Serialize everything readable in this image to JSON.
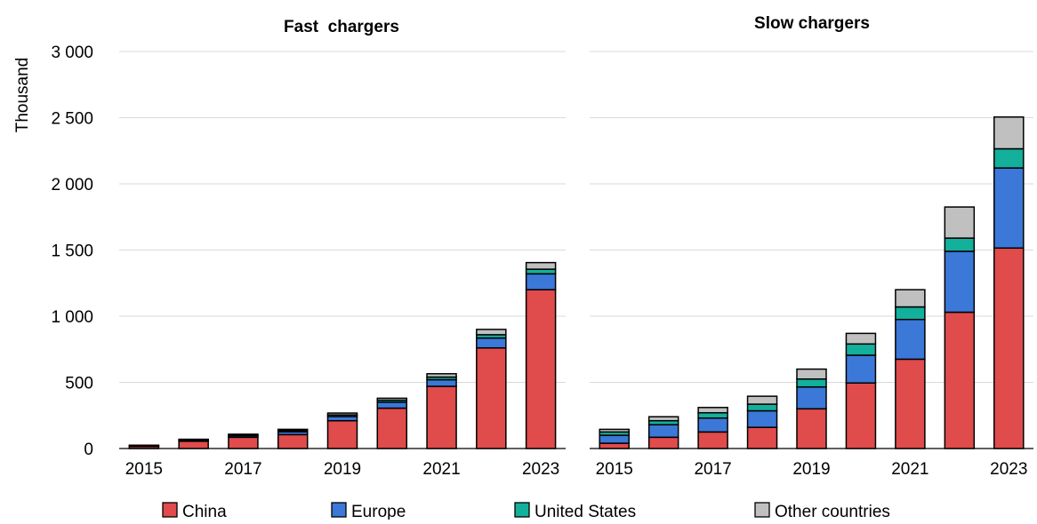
{
  "chart_data": [
    {
      "type": "bar",
      "stacked": true,
      "title": "Fast  chargers",
      "ylabel": "Thousand",
      "ylim": [
        0,
        3000
      ],
      "yticks": [
        0,
        500,
        1000,
        1500,
        2000,
        2500,
        3000
      ],
      "ytick_labels": [
        "0",
        "500",
        "1 000",
        "1 500",
        "2 000",
        "2 500",
        "3 000"
      ],
      "categories": [
        "2015",
        "2016",
        "2017",
        "2018",
        "2019",
        "2020",
        "2021",
        "2022",
        "2023"
      ],
      "xtick_labels": [
        "2015",
        "",
        "2017",
        "",
        "2019",
        "",
        "2021",
        "",
        "2023"
      ],
      "grid": "horizontal",
      "series": [
        {
          "name": "China",
          "values": [
            15,
            55,
            85,
            105,
            210,
            305,
            470,
            760,
            1200
          ]
        },
        {
          "name": "Europe",
          "values": [
            5,
            8,
            12,
            22,
            32,
            45,
            50,
            75,
            120
          ]
        },
        {
          "name": "United States",
          "values": [
            3,
            4,
            5,
            8,
            12,
            15,
            20,
            25,
            35
          ]
        },
        {
          "name": "Other countries",
          "values": [
            2,
            3,
            6,
            10,
            14,
            15,
            25,
            40,
            50
          ]
        }
      ]
    },
    {
      "type": "bar",
      "stacked": true,
      "title": "Slow chargers",
      "ylim": [
        0,
        3000
      ],
      "categories": [
        "2015",
        "2016",
        "2017",
        "2018",
        "2019",
        "2020",
        "2021",
        "2022",
        "2023"
      ],
      "xtick_labels": [
        "2015",
        "",
        "2017",
        "",
        "2019",
        "",
        "2021",
        "",
        "2023"
      ],
      "grid": "horizontal",
      "series": [
        {
          "name": "China",
          "values": [
            40,
            85,
            125,
            160,
            300,
            495,
            675,
            1030,
            1515
          ]
        },
        {
          "name": "Europe",
          "values": [
            60,
            95,
            105,
            125,
            165,
            210,
            300,
            460,
            605
          ]
        },
        {
          "name": "United States",
          "values": [
            25,
            30,
            40,
            50,
            60,
            85,
            95,
            100,
            145
          ]
        },
        {
          "name": "Other countries",
          "values": [
            20,
            30,
            40,
            60,
            75,
            80,
            130,
            235,
            240
          ]
        }
      ]
    }
  ],
  "legend": {
    "position": "bottom",
    "items": [
      {
        "label": "China",
        "color": "#e04b4b"
      },
      {
        "label": "Europe",
        "color": "#3b78d8"
      },
      {
        "label": "United States",
        "color": "#13b09b"
      },
      {
        "label": "Other countries",
        "color": "#c0c0c0"
      }
    ]
  },
  "colors": {
    "China": "#e04b4b",
    "Europe": "#3b78d8",
    "United States": "#13b09b",
    "Other countries": "#c0c0c0",
    "grid": "#d9d9d9",
    "bar_border": "#000000"
  }
}
